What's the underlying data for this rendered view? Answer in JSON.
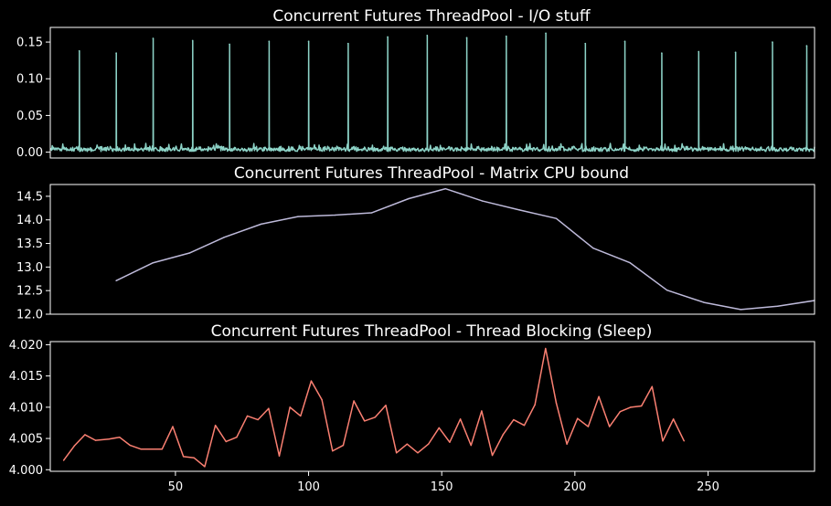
{
  "chart_data": [
    {
      "type": "line",
      "title": "Concurrent Futures ThreadPool - I/O stuff",
      "color": "#8dd3c7",
      "xlim": [
        0,
        290
      ],
      "ylim": [
        -0.008,
        0.17
      ],
      "yticks": [
        0.0,
        0.05,
        0.1,
        0.15
      ],
      "ytick_labels": [
        "0.00",
        "0.05",
        "0.10",
        "0.15"
      ],
      "baseline_range": [
        0.001,
        0.009
      ],
      "spikes": [
        {
          "x": 11,
          "y": 0.138
        },
        {
          "x": 25,
          "y": 0.135
        },
        {
          "x": 39,
          "y": 0.155
        },
        {
          "x": 54,
          "y": 0.152
        },
        {
          "x": 68,
          "y": 0.147
        },
        {
          "x": 83,
          "y": 0.151
        },
        {
          "x": 98,
          "y": 0.151
        },
        {
          "x": 113,
          "y": 0.148
        },
        {
          "x": 128,
          "y": 0.157
        },
        {
          "x": 143,
          "y": 0.159
        },
        {
          "x": 158,
          "y": 0.156
        },
        {
          "x": 173,
          "y": 0.158
        },
        {
          "x": 188,
          "y": 0.162
        },
        {
          "x": 203,
          "y": 0.148
        },
        {
          "x": 218,
          "y": 0.151
        },
        {
          "x": 232,
          "y": 0.135
        },
        {
          "x": 246,
          "y": 0.137
        },
        {
          "x": 260,
          "y": 0.136
        },
        {
          "x": 274,
          "y": 0.15
        },
        {
          "x": 287,
          "y": 0.145
        }
      ]
    },
    {
      "type": "line",
      "title": "Concurrent Futures ThreadPool - Matrix CPU bound",
      "color": "#bebada",
      "xlim": [
        0,
        290
      ],
      "ylim": [
        12.0,
        14.75
      ],
      "yticks": [
        12.0,
        12.5,
        13.0,
        13.5,
        14.0,
        14.5
      ],
      "ytick_labels": [
        "12.0",
        "12.5",
        "13.0",
        "13.5",
        "14.0",
        "14.5"
      ],
      "x": [
        25,
        39,
        53,
        66,
        80,
        94,
        108,
        122,
        136,
        150,
        164,
        178,
        192,
        206,
        220,
        234,
        248,
        262,
        276,
        290
      ],
      "y": [
        12.71,
        13.09,
        13.3,
        13.63,
        13.91,
        14.07,
        14.1,
        14.15,
        14.45,
        14.66,
        14.4,
        14.21,
        14.03,
        13.4,
        13.09,
        12.51,
        12.25,
        12.1,
        12.17,
        12.29
      ]
    },
    {
      "type": "line",
      "title": "Concurrent Futures ThreadPool - Thread Blocking (Sleep)",
      "color": "#fb8072",
      "xlim": [
        3,
        290
      ],
      "ylim": [
        3.99975,
        4.0205
      ],
      "yticks": [
        4.0,
        4.005,
        4.01,
        4.015,
        4.02
      ],
      "ytick_labels": [
        "4.000",
        "4.005",
        "4.010",
        "4.015",
        "4.020"
      ],
      "xticks": [
        50,
        100,
        150,
        200,
        250
      ],
      "xtick_labels": [
        "50",
        "100",
        "150",
        "200",
        "250"
      ],
      "x": [
        8,
        12,
        16,
        20,
        25,
        29,
        33,
        37,
        41,
        45,
        49,
        53,
        57,
        61,
        65,
        69,
        73,
        77,
        81,
        85,
        89,
        93,
        97,
        101,
        105,
        109,
        113,
        117,
        121,
        125,
        129,
        133,
        137,
        141,
        145,
        149,
        153,
        157,
        161,
        165,
        169,
        173,
        177,
        181,
        185,
        189,
        193,
        197,
        201,
        205,
        209,
        213,
        217,
        221,
        225,
        229,
        233,
        237,
        241
      ],
      "y": [
        4.0015,
        4.0038,
        4.0056,
        4.0047,
        4.0049,
        4.0052,
        4.0039,
        4.0033,
        4.0033,
        4.0033,
        4.0069,
        4.0021,
        4.0019,
        4.0005,
        4.0071,
        4.0045,
        4.0052,
        4.0086,
        4.008,
        4.0098,
        4.0022,
        4.01,
        4.0086,
        4.0142,
        4.0112,
        4.003,
        4.0039,
        4.011,
        4.0078,
        4.0084,
        4.0103,
        4.0027,
        4.0041,
        4.0027,
        4.0041,
        4.0067,
        4.0044,
        4.0081,
        4.0039,
        4.0094,
        4.0023,
        4.0056,
        4.008,
        4.0071,
        4.0104,
        4.0194,
        4.0107,
        4.0041,
        4.0082,
        4.0069,
        4.0117,
        4.0069,
        4.0093,
        4.01,
        4.0102,
        4.0133,
        4.0046,
        4.0081,
        4.0046
      ]
    }
  ]
}
